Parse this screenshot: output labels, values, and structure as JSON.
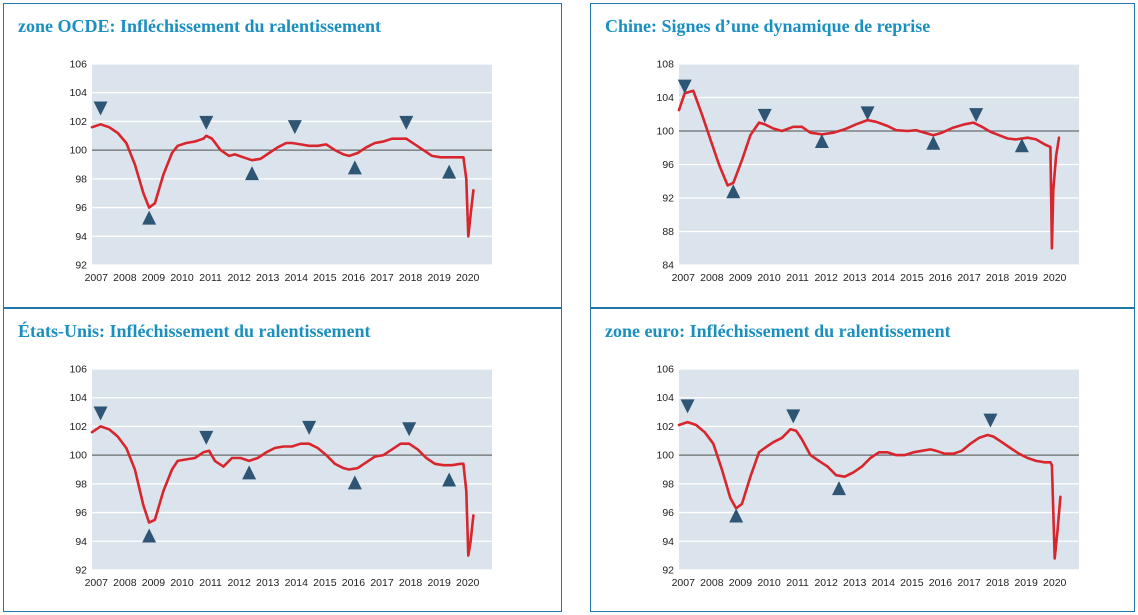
{
  "chart_data": [
    {
      "type": "line",
      "title": "zone OCDE:  Infléchissement du ralentissement",
      "x_ticks": [
        "2007",
        "2008",
        "2009",
        "2010",
        "2011",
        "2012",
        "2013",
        "2014",
        "2015",
        "2016",
        "2017",
        "2018",
        "2019",
        "2020"
      ],
      "ylim": [
        92,
        106
      ],
      "y_ticks": [
        92,
        94,
        96,
        98,
        100,
        102,
        104,
        106
      ],
      "xlim": [
        2007.0,
        2021.0
      ],
      "reference_line": 100,
      "series": [
        {
          "color": "#d7262d",
          "x": [
            2007.0,
            2007.3,
            2007.6,
            2007.9,
            2008.2,
            2008.5,
            2008.8,
            2009.0,
            2009.2,
            2009.5,
            2009.8,
            2010.0,
            2010.3,
            2010.6,
            2010.9,
            2011.0,
            2011.2,
            2011.5,
            2011.8,
            2012.0,
            2012.3,
            2012.6,
            2012.9,
            2013.2,
            2013.5,
            2013.8,
            2014.0,
            2014.3,
            2014.6,
            2014.9,
            2015.2,
            2015.5,
            2015.8,
            2016.0,
            2016.3,
            2016.6,
            2016.9,
            2017.2,
            2017.5,
            2017.8,
            2018.0,
            2018.3,
            2018.6,
            2018.9,
            2019.2,
            2019.5,
            2019.8,
            2020.0,
            2020.1,
            2020.17,
            2020.25,
            2020.35
          ],
          "y": [
            101.6,
            101.8,
            101.6,
            101.2,
            100.5,
            99.0,
            97.0,
            96.0,
            96.3,
            98.3,
            99.8,
            100.3,
            100.5,
            100.6,
            100.8,
            101.0,
            100.8,
            100.0,
            99.6,
            99.7,
            99.5,
            99.3,
            99.4,
            99.8,
            100.2,
            100.5,
            100.5,
            100.4,
            100.3,
            100.3,
            100.4,
            100.0,
            99.7,
            99.6,
            99.8,
            100.2,
            100.5,
            100.6,
            100.8,
            100.8,
            100.8,
            100.4,
            100.0,
            99.6,
            99.5,
            99.5,
            99.5,
            99.5,
            98.0,
            94.0,
            95.5,
            97.2
          ]
        }
      ],
      "markers": [
        {
          "x": 2007.3,
          "y": 102.9,
          "shape": "down"
        },
        {
          "x": 2009.0,
          "y": 95.3,
          "shape": "up"
        },
        {
          "x": 2011.0,
          "y": 101.9,
          "shape": "down"
        },
        {
          "x": 2012.6,
          "y": 98.4,
          "shape": "up"
        },
        {
          "x": 2014.1,
          "y": 101.6,
          "shape": "down"
        },
        {
          "x": 2016.2,
          "y": 98.8,
          "shape": "up"
        },
        {
          "x": 2018.0,
          "y": 101.9,
          "shape": "down"
        },
        {
          "x": 2019.5,
          "y": 98.5,
          "shape": "up"
        }
      ]
    },
    {
      "type": "line",
      "title": "Chine: Signes d’une dynamique de reprise",
      "x_ticks": [
        "2007",
        "2008",
        "2009",
        "2010",
        "2011",
        "2012",
        "2013",
        "2014",
        "2015",
        "2016",
        "2017",
        "2018",
        "2019",
        "2020"
      ],
      "ylim": [
        84,
        108
      ],
      "y_ticks": [
        84,
        88,
        92,
        96,
        100,
        104,
        108
      ],
      "xlim": [
        2007.0,
        2021.0
      ],
      "reference_line": 100,
      "series": [
        {
          "color": "#d7262d",
          "x": [
            2007.0,
            2007.2,
            2007.5,
            2007.8,
            2008.1,
            2008.4,
            2008.7,
            2008.9,
            2009.2,
            2009.5,
            2009.8,
            2010.0,
            2010.3,
            2010.6,
            2011.0,
            2011.3,
            2011.6,
            2012.0,
            2012.4,
            2012.8,
            2013.2,
            2013.6,
            2013.9,
            2014.3,
            2014.6,
            2015.0,
            2015.3,
            2015.6,
            2015.9,
            2016.2,
            2016.6,
            2017.0,
            2017.3,
            2017.6,
            2017.9,
            2018.2,
            2018.5,
            2018.8,
            2019.2,
            2019.5,
            2019.8,
            2020.0,
            2020.05,
            2020.1,
            2020.2,
            2020.3
          ],
          "y": [
            102.5,
            104.5,
            104.8,
            102.0,
            99.0,
            96.0,
            93.5,
            93.8,
            96.5,
            99.5,
            101.0,
            100.8,
            100.3,
            100.0,
            100.5,
            100.5,
            99.8,
            99.6,
            99.8,
            100.2,
            100.8,
            101.3,
            101.1,
            100.6,
            100.1,
            100.0,
            100.1,
            99.8,
            99.5,
            99.8,
            100.4,
            100.8,
            101.0,
            100.5,
            99.9,
            99.5,
            99.1,
            99.0,
            99.2,
            99.0,
            98.4,
            98.1,
            86.0,
            93.0,
            97.0,
            99.2
          ]
        }
      ],
      "markers": [
        {
          "x": 2007.2,
          "y": 105.3,
          "shape": "down"
        },
        {
          "x": 2008.9,
          "y": 92.8,
          "shape": "up"
        },
        {
          "x": 2010.0,
          "y": 101.8,
          "shape": "down"
        },
        {
          "x": 2012.0,
          "y": 98.8,
          "shape": "up"
        },
        {
          "x": 2013.6,
          "y": 102.1,
          "shape": "down"
        },
        {
          "x": 2015.9,
          "y": 98.6,
          "shape": "up"
        },
        {
          "x": 2017.4,
          "y": 101.9,
          "shape": "down"
        },
        {
          "x": 2019.0,
          "y": 98.3,
          "shape": "up"
        }
      ]
    },
    {
      "type": "line",
      "title": "États-Unis: Infléchissement du ralentissement",
      "x_ticks": [
        "2007",
        "2008",
        "2009",
        "2010",
        "2011",
        "2012",
        "2013",
        "2014",
        "2015",
        "2016",
        "2017",
        "2018",
        "2019",
        "2020"
      ],
      "ylim": [
        92,
        106
      ],
      "y_ticks": [
        92,
        94,
        96,
        98,
        100,
        102,
        104,
        106
      ],
      "xlim": [
        2007.0,
        2021.0
      ],
      "reference_line": 100,
      "series": [
        {
          "color": "#d7262d",
          "x": [
            2007.0,
            2007.3,
            2007.6,
            2007.9,
            2008.2,
            2008.5,
            2008.8,
            2009.0,
            2009.2,
            2009.5,
            2009.8,
            2010.0,
            2010.3,
            2010.6,
            2010.9,
            2011.1,
            2011.3,
            2011.6,
            2011.9,
            2012.2,
            2012.5,
            2012.8,
            2013.1,
            2013.4,
            2013.7,
            2014.0,
            2014.3,
            2014.6,
            2014.9,
            2015.2,
            2015.5,
            2015.8,
            2016.0,
            2016.3,
            2016.6,
            2016.9,
            2017.2,
            2017.5,
            2017.8,
            2018.1,
            2018.4,
            2018.7,
            2019.0,
            2019.3,
            2019.6,
            2019.9,
            2020.0,
            2020.1,
            2020.17,
            2020.25,
            2020.35
          ],
          "y": [
            101.6,
            102.0,
            101.8,
            101.3,
            100.5,
            99.0,
            96.5,
            95.3,
            95.5,
            97.5,
            99.0,
            99.6,
            99.7,
            99.8,
            100.2,
            100.3,
            99.6,
            99.2,
            99.8,
            99.8,
            99.6,
            99.8,
            100.2,
            100.5,
            100.6,
            100.6,
            100.8,
            100.8,
            100.5,
            100.0,
            99.4,
            99.1,
            99.0,
            99.1,
            99.5,
            99.9,
            100.0,
            100.4,
            100.8,
            100.8,
            100.4,
            99.8,
            99.4,
            99.3,
            99.3,
            99.4,
            99.4,
            97.5,
            93.0,
            94.0,
            95.8
          ]
        }
      ],
      "markers": [
        {
          "x": 2007.3,
          "y": 102.9,
          "shape": "down"
        },
        {
          "x": 2009.0,
          "y": 94.4,
          "shape": "up"
        },
        {
          "x": 2011.0,
          "y": 101.2,
          "shape": "down"
        },
        {
          "x": 2012.5,
          "y": 98.8,
          "shape": "up"
        },
        {
          "x": 2014.6,
          "y": 101.9,
          "shape": "down"
        },
        {
          "x": 2016.2,
          "y": 98.1,
          "shape": "up"
        },
        {
          "x": 2018.1,
          "y": 101.8,
          "shape": "down"
        },
        {
          "x": 2019.5,
          "y": 98.3,
          "shape": "up"
        }
      ]
    },
    {
      "type": "line",
      "title": "zone euro: Infléchissement du ralentissement",
      "x_ticks": [
        "2007",
        "2008",
        "2009",
        "2010",
        "2011",
        "2012",
        "2013",
        "2014",
        "2015",
        "2016",
        "2017",
        "2018",
        "2019",
        "2020"
      ],
      "ylim": [
        92,
        106
      ],
      "y_ticks": [
        92,
        94,
        96,
        98,
        100,
        102,
        104,
        106
      ],
      "xlim": [
        2007.0,
        2021.0
      ],
      "reference_line": 100,
      "series": [
        {
          "color": "#d7262d",
          "x": [
            2007.0,
            2007.3,
            2007.6,
            2007.9,
            2008.2,
            2008.5,
            2008.8,
            2009.0,
            2009.2,
            2009.5,
            2009.8,
            2010.0,
            2010.3,
            2010.6,
            2010.9,
            2011.1,
            2011.3,
            2011.6,
            2011.9,
            2012.2,
            2012.5,
            2012.8,
            2013.1,
            2013.4,
            2013.7,
            2014.0,
            2014.3,
            2014.6,
            2014.9,
            2015.2,
            2015.5,
            2015.8,
            2016.0,
            2016.3,
            2016.6,
            2016.9,
            2017.2,
            2017.5,
            2017.8,
            2018.0,
            2018.3,
            2018.6,
            2018.9,
            2019.2,
            2019.5,
            2019.8,
            2020.0,
            2020.05,
            2020.15,
            2020.25,
            2020.35
          ],
          "y": [
            102.1,
            102.3,
            102.1,
            101.6,
            100.8,
            99.0,
            97.0,
            96.3,
            96.6,
            98.5,
            100.2,
            100.5,
            100.9,
            101.2,
            101.8,
            101.7,
            101.1,
            100.0,
            99.6,
            99.2,
            98.6,
            98.5,
            98.8,
            99.2,
            99.8,
            100.2,
            100.2,
            100.0,
            100.0,
            100.2,
            100.3,
            100.4,
            100.3,
            100.1,
            100.1,
            100.3,
            100.8,
            101.2,
            101.4,
            101.3,
            100.9,
            100.5,
            100.1,
            99.8,
            99.6,
            99.5,
            99.5,
            99.3,
            92.8,
            94.8,
            97.1
          ]
        }
      ],
      "markers": [
        {
          "x": 2007.3,
          "y": 103.4,
          "shape": "down"
        },
        {
          "x": 2009.0,
          "y": 95.8,
          "shape": "up"
        },
        {
          "x": 2011.0,
          "y": 102.7,
          "shape": "down"
        },
        {
          "x": 2012.6,
          "y": 97.7,
          "shape": "up"
        },
        {
          "x": 2017.9,
          "y": 102.4,
          "shape": "down"
        }
      ]
    }
  ]
}
